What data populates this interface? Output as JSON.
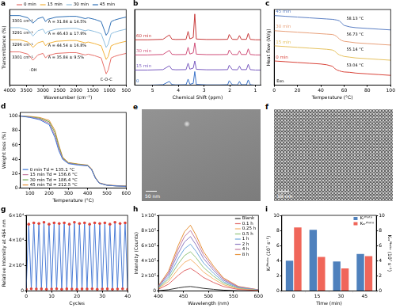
{
  "chart_data": [
    {
      "type": "line",
      "title": "a",
      "xlabel": "Wavenumber (cm⁻¹)",
      "ylabel": "Transmittance (%)",
      "x": [
        4000,
        3700,
        3450,
        3300,
        3150,
        3000,
        2920,
        2860,
        2600,
        2200,
        2000,
        1730,
        1640,
        1450,
        1380,
        1250,
        1100,
        1040,
        950,
        850,
        700,
        500
      ],
      "series": [
        {
          "name": "0 min",
          "color": "#e8706a",
          "values": [
            44,
            44,
            41,
            33,
            40,
            42,
            36,
            39,
            42,
            43,
            43,
            40,
            41,
            39,
            38,
            36,
            15,
            20,
            36,
            38,
            40,
            42
          ]
        },
        {
          "name": "15 min",
          "color": "#f2b33d",
          "values": [
            60,
            60,
            57,
            50,
            56,
            58,
            52,
            55,
            58,
            59,
            59,
            56,
            57,
            55,
            54,
            52,
            34,
            38,
            52,
            54,
            56,
            58
          ]
        },
        {
          "name": "30 min",
          "color": "#8fbfe0",
          "values": [
            76,
            76,
            73,
            65,
            72,
            74,
            68,
            71,
            74,
            75,
            75,
            72,
            73,
            71,
            70,
            68,
            50,
            54,
            68,
            70,
            72,
            74
          ]
        },
        {
          "name": "45 min",
          "color": "#2e6fb5",
          "values": [
            92,
            92,
            89,
            82,
            88,
            90,
            84,
            87,
            90,
            91,
            91,
            88,
            89,
            87,
            86,
            84,
            66,
            70,
            84,
            86,
            88,
            90
          ]
        }
      ],
      "xlim": [
        4000,
        500
      ],
      "xticks": [
        4000,
        3500,
        3000,
        2500,
        2000,
        1500,
        1000,
        500
      ],
      "ylim": [
        0,
        100
      ],
      "tick_labels": "x",
      "grid": false,
      "legend": "top",
      "annotations": [
        "3301 cm⁻¹",
        "3291 cm⁻¹",
        "3296 cm⁻¹",
        "3301 cm⁻¹",
        "A = 31.84 ± 14.5%",
        "A = 46.43 ± 17.9%",
        "A = 44.54 ± 16.8%",
        "A = 35.84 ± 9.5%",
        "-OH",
        "C-O-C"
      ]
    },
    {
      "type": "line",
      "title": "b",
      "xlabel": "Chemical Shift (ppm)",
      "x": [
        5.7,
        5.2,
        4.6,
        4.35,
        4.25,
        4.1,
        3.7,
        3.62,
        3.55,
        3.42,
        3.36,
        3.3,
        2.9,
        2.4,
        2.08,
        2.02,
        1.9,
        1.7,
        1.62,
        1.55,
        1.35,
        1.28,
        1.2,
        1.0,
        0.8
      ],
      "series": [
        {
          "name": "0",
          "color": "#3b73c9",
          "values": [
            0,
            0,
            0.3,
            2.5,
            0.4,
            0.2,
            0.3,
            4,
            0.6,
            1.2,
            9,
            0.5,
            0.2,
            0.2,
            0.3,
            3,
            0.3,
            0.2,
            2.5,
            0.3,
            0.3,
            3.5,
            0.3,
            0,
            0
          ]
        },
        {
          "name": "15 min",
          "color": "#7a5cc0",
          "values": [
            10,
            10,
            10.3,
            12.8,
            10.4,
            10.2,
            10.3,
            14.5,
            10.6,
            11.3,
            16,
            10.5,
            10.2,
            10.2,
            10.3,
            13.2,
            10.3,
            10.2,
            12.6,
            10.3,
            10.3,
            13.8,
            10.3,
            10,
            10
          ]
        },
        {
          "name": "30 min",
          "color": "#d0507a",
          "values": [
            20,
            20,
            20.3,
            23,
            20.4,
            20.2,
            20.3,
            25,
            20.6,
            21.4,
            28,
            20.5,
            20.2,
            20.2,
            20.3,
            23.3,
            20.3,
            20.2,
            22.7,
            20.3,
            20.3,
            24,
            20.3,
            20,
            20
          ]
        },
        {
          "name": "60 min",
          "color": "#c83c3c",
          "values": [
            30,
            30,
            30.3,
            33.2,
            30.4,
            30.2,
            30.3,
            35.5,
            30.6,
            31.5,
            47,
            30.5,
            30.2,
            30.2,
            30.3,
            33.5,
            30.3,
            30.2,
            32.8,
            30.3,
            30.3,
            34.2,
            30.3,
            30,
            30
          ]
        }
      ],
      "xlim": [
        5.7,
        0.8
      ],
      "xticks": [
        5,
        4,
        3,
        2,
        1
      ],
      "ylim": [
        0,
        50
      ],
      "tick_labels": "x",
      "grid": false
    },
    {
      "type": "line",
      "title": "c",
      "xlabel": "Temperature (°C)",
      "ylabel": "Heat flow (W/g)",
      "x": [
        0,
        10,
        20,
        30,
        40,
        45,
        50,
        52,
        54,
        56,
        58,
        60,
        65,
        70,
        80,
        90,
        100
      ],
      "series": [
        {
          "name": "45 min",
          "color": "#5b7fc4",
          "values": [
            92,
            91,
            90,
            89,
            88,
            87.5,
            87,
            86.5,
            86,
            85,
            82,
            79,
            77,
            76,
            75,
            74,
            73
          ]
        },
        {
          "name": "30 min",
          "color": "#e8a07a",
          "values": [
            72,
            71,
            70,
            69,
            68,
            67.5,
            67,
            66,
            64,
            61,
            59,
            58,
            57,
            56,
            55,
            54,
            53
          ]
        },
        {
          "name": "15 min",
          "color": "#e6c260",
          "values": [
            52,
            51,
            50,
            49,
            48,
            47.5,
            46.5,
            45,
            42,
            40,
            39,
            38,
            37,
            36,
            35,
            34,
            33
          ]
        },
        {
          "name": "0 min",
          "color": "#d9443a",
          "values": [
            32,
            31,
            30,
            29,
            28,
            27,
            25,
            22,
            20,
            19,
            18,
            17.5,
            17,
            16,
            15,
            14,
            13
          ]
        }
      ],
      "xlim": [
        0,
        100
      ],
      "xticks": [
        0,
        20,
        40,
        60,
        80,
        100
      ],
      "ylim": [
        0,
        100
      ],
      "tick_labels": "x",
      "grid": false,
      "annotations": [
        "58.13 °C",
        "56.73 °C",
        "55.14 °C",
        "53.04 °C",
        "Exo."
      ]
    },
    {
      "type": "line",
      "title": "d",
      "xlabel": "Temperature (°C)",
      "ylabel": "Weight loss (%)",
      "x": [
        50,
        100,
        150,
        200,
        230,
        250,
        270,
        300,
        350,
        400,
        420,
        440,
        460,
        500,
        550,
        600
      ],
      "series": [
        {
          "name": "0 min Td = 135.1 °C",
          "color": "#3c78d8",
          "values": [
            100,
            98,
            95,
            88,
            70,
            52,
            40,
            34,
            32,
            31,
            26,
            14,
            7,
            4,
            3,
            2.5
          ]
        },
        {
          "name": "15 min Td = 156.6 °C",
          "color": "#c27ba0",
          "values": [
            100,
            98.5,
            96,
            90,
            73,
            55,
            41,
            34.5,
            32.5,
            31,
            26,
            14,
            7,
            4,
            3,
            2.5
          ]
        },
        {
          "name": "30 min Td = 186.4 °C",
          "color": "#6aa84f",
          "values": [
            100,
            99,
            97,
            92,
            77,
            58,
            42,
            35,
            33,
            31.5,
            26.5,
            14.5,
            7,
            4,
            3,
            2.5
          ]
        },
        {
          "name": "45 min Td = 212.5 °C",
          "color": "#e69138",
          "values": [
            100,
            99.5,
            98,
            94,
            80,
            60,
            43,
            35.5,
            33.5,
            32,
            27,
            15,
            7.5,
            4.5,
            3.5,
            3
          ]
        }
      ],
      "xlim": [
        50,
        600
      ],
      "xticks": [
        100,
        200,
        300,
        400,
        500,
        600
      ],
      "ylim": [
        0,
        105
      ],
      "yticks": [
        0,
        20,
        40,
        60,
        80,
        100
      ],
      "grid": false,
      "legend": "lower left"
    },
    {
      "type": "image",
      "title": "e",
      "scale_bar": "50 nm"
    },
    {
      "type": "image",
      "title": "f",
      "scale_bar": "50 nm"
    },
    {
      "type": "line",
      "title": "g",
      "xlabel": "Cycles",
      "ylabel": "Relative Intensity at 464 nm",
      "x": [
        0,
        1,
        2,
        3,
        4,
        5,
        6,
        7,
        8,
        9,
        10,
        11,
        12,
        13,
        14,
        15,
        16,
        17,
        18,
        19,
        20,
        21,
        22,
        23,
        24,
        25,
        26,
        27,
        28,
        29,
        30,
        31,
        32,
        33,
        34,
        35,
        36,
        37,
        38,
        39,
        40
      ],
      "series": [
        {
          "color": "#4f7fd6",
          "marker": "circle",
          "values": [
            1500,
            53000,
            1800,
            54000,
            1600,
            53500,
            1700,
            54500,
            1500,
            53000,
            1600,
            54000,
            1800,
            53500,
            1500,
            54000,
            1700,
            53000,
            1600,
            54500,
            1500,
            53500,
            1700,
            54000,
            1600,
            53000,
            1800,
            54000,
            1500,
            53500,
            1600,
            54000,
            1700,
            53000,
            1500,
            54500,
            1600,
            53500,
            1800,
            54000,
            1500
          ]
        }
      ],
      "xlim": [
        0,
        40
      ],
      "xticks": [
        0,
        10,
        20,
        30,
        40
      ],
      "ylim": [
        0,
        60000
      ],
      "yticks": [
        0,
        {
          "value": 20000,
          "label": "2×10⁴"
        },
        {
          "value": 40000,
          "label": "4×10⁴"
        },
        {
          "value": 60000,
          "label": "6×10⁴"
        }
      ],
      "grid": false
    },
    {
      "type": "line",
      "title": "h",
      "xlabel": "Wavelength (nm)",
      "ylabel": "Intensity (Counts)",
      "x": [
        400,
        420,
        440,
        452,
        464,
        475,
        490,
        510,
        530,
        560,
        600
      ],
      "series": [
        {
          "name": "Blank",
          "color": "#333333",
          "values": [
            5000,
            18000,
            42000,
            54000,
            60000,
            51000,
            36000,
            23000,
            12000,
            4000,
            1000
          ]
        },
        {
          "name": "0.1 h",
          "color": "#e06666",
          "values": [
            24000,
            90000,
            210000,
            270000,
            300000,
            255000,
            180000,
            114000,
            60000,
            21000,
            6000
          ]
        },
        {
          "name": "0.25 h",
          "color": "#f6b26b",
          "values": [
            34000,
            126000,
            294000,
            378000,
            420000,
            357000,
            252000,
            160000,
            84000,
            29000,
            8000
          ]
        },
        {
          "name": "0.5 h",
          "color": "#93c47d",
          "values": [
            42000,
            156000,
            364000,
            468000,
            520000,
            442000,
            312000,
            198000,
            104000,
            36000,
            10000
          ]
        },
        {
          "name": "1 h",
          "color": "#6fa8dc",
          "values": [
            50000,
            186000,
            434000,
            558000,
            620000,
            527000,
            372000,
            236000,
            124000,
            43000,
            12000
          ]
        },
        {
          "name": "2 h",
          "color": "#8e7cc3",
          "values": [
            58000,
            216000,
            504000,
            648000,
            720000,
            612000,
            432000,
            274000,
            144000,
            50000,
            14000
          ]
        },
        {
          "name": "4 h",
          "color": "#c27ba0",
          "values": [
            64000,
            240000,
            560000,
            720000,
            800000,
            680000,
            480000,
            304000,
            160000,
            56000,
            16000
          ]
        },
        {
          "name": "8 h",
          "color": "#e69138",
          "values": [
            70000,
            261000,
            609000,
            783000,
            870000,
            740000,
            522000,
            331000,
            174000,
            61000,
            17000
          ]
        }
      ],
      "xlim": [
        400,
        600
      ],
      "xticks": [
        400,
        450,
        500,
        550,
        600
      ],
      "ylim": [
        0,
        1000000
      ],
      "yticks": [
        0,
        {
          "value": 200000,
          "label": "2×10⁵"
        },
        {
          "value": 400000,
          "label": "4×10⁵"
        },
        {
          "value": 600000,
          "label": "6×10⁵"
        },
        {
          "value": 800000,
          "label": "8×10⁵"
        },
        {
          "value": 1000000,
          "label": "1×10⁶"
        }
      ],
      "grid": false,
      "legend": "upper right"
    },
    {
      "type": "bar",
      "title": "i",
      "xlabel": "Time (min)",
      "ylabel": "Kᵣᴾʰᵒᵗᵒ (10⁷ s⁻¹)",
      "y2label": "Kₙᵣᴾʰᵒᵗᵒ (10⁷ s⁻¹)",
      "categories": [
        "0",
        "15",
        "30",
        "45"
      ],
      "series": [
        {
          "name": "Kᵣᴾʰᵒᵗᵒ",
          "color": "#4f81bd",
          "values": [
            4.0,
            8.1,
            3.9,
            4.9
          ]
        },
        {
          "name": "Kₙᵣᴾʰᵒᵗᵒ",
          "color": "#f0665a",
          "axis": "y2",
          "values": [
            8.4,
            4.5,
            3.0,
            4.6
          ]
        }
      ],
      "ylim": [
        0,
        10
      ],
      "yticks": [
        0,
        2,
        4,
        6,
        8,
        10
      ],
      "y2lim": [
        0,
        10
      ],
      "y2ticks": [
        0,
        2,
        4,
        6,
        8,
        10
      ],
      "grid": false,
      "legend": "upper right"
    }
  ]
}
